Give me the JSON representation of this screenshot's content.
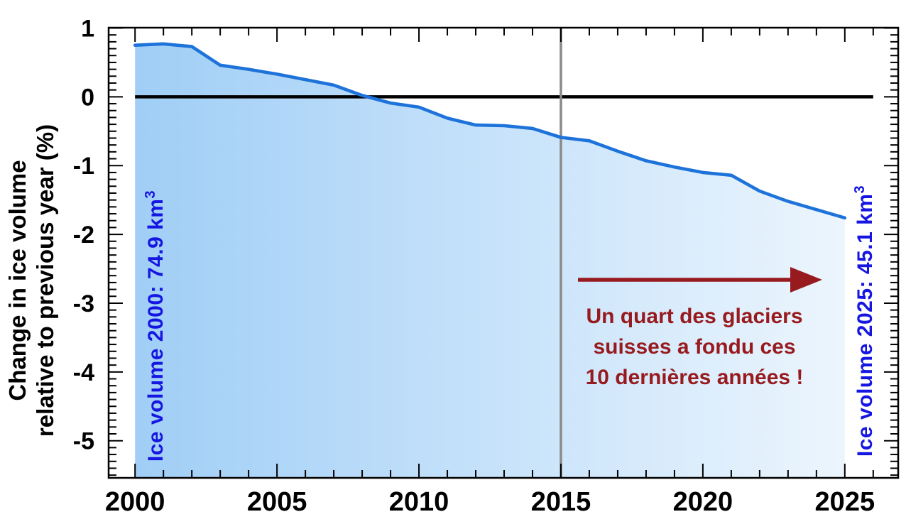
{
  "chart_data": {
    "type": "area",
    "title": "",
    "x_axis": {
      "major_ticks": [
        2000,
        2005,
        2010,
        2015,
        2020,
        2025
      ],
      "minor_tick_step_years": 1,
      "first_minor_year": 2000,
      "last_minor_year": 2026
    },
    "y_axis": {
      "title_line1": "Change in ice volume",
      "title_line2": "relative to previous year (%)",
      "major_ticks": [
        1,
        0,
        -1,
        -2,
        -3,
        -4,
        -5
      ],
      "minor_tick_step": 0.1
    },
    "plot_xlim": [
      1999.07,
      2026.88
    ],
    "plot_ylim": [
      -5.54,
      1.005
    ],
    "years": [
      2000,
      2001,
      2002,
      2003,
      2004,
      2005,
      2006,
      2007,
      2008,
      2009,
      2010,
      2011,
      2012,
      2013,
      2014,
      2015,
      2016,
      2017,
      2018,
      2019,
      2020,
      2021,
      2022,
      2023,
      2024,
      2025
    ],
    "values": [
      0.75,
      0.77,
      0.73,
      0.46,
      0.4,
      0.33,
      0.25,
      0.17,
      0.02,
      -0.09,
      -0.15,
      -0.31,
      -0.41,
      -0.42,
      -0.46,
      -0.59,
      -0.64,
      -0.79,
      -0.93,
      -1.02,
      -1.1,
      -1.14,
      -1.37,
      -1.52,
      -1.64,
      -1.76
    ],
    "zero_line_y": 0,
    "zero_line_span_years": [
      2000,
      2026
    ],
    "reference_vline_year": 2015,
    "grid": "off",
    "colors": {
      "line": "#1d73da",
      "area_left": "#a0cef6",
      "area_mid": "#c6e2fa",
      "area_right": "#ecf5fd",
      "axis": "#000000",
      "vline": "#8a8a8a",
      "blue_label": "#1616e2",
      "red": "#971b1e"
    },
    "annotations": {
      "left_vertical_label": {
        "text": "Ice volume 2000: 74.9 km",
        "superscript": "3"
      },
      "right_vertical_label": {
        "text": "Ice volume 2025: 45.1 km",
        "superscript": "3"
      },
      "red_note": {
        "lines": [
          "Un quart des glaciers",
          "suisses a fondu ces",
          "10 dernières années !"
        ]
      }
    }
  }
}
